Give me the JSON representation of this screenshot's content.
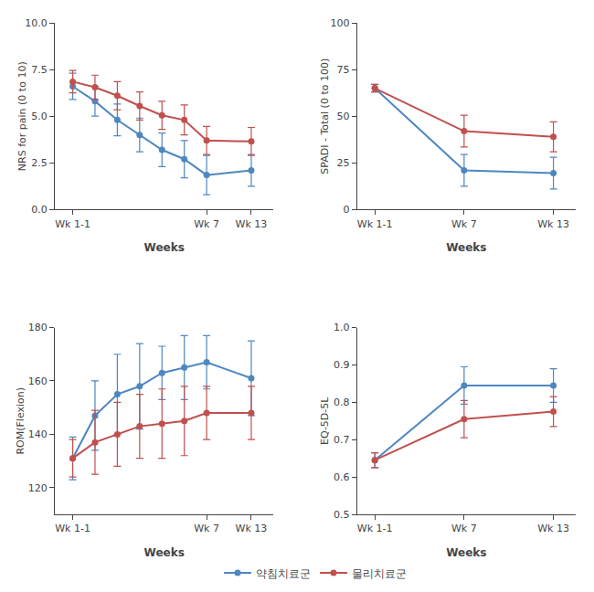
{
  "chart_data": [
    {
      "type": "line",
      "xlabel": "Weeks",
      "ylabel": "NRS for pain (0 to 10)",
      "xlim": [
        0.2,
        10.0
      ],
      "xticks": [
        {
          "value": 1,
          "label": "Wk 1-1"
        },
        {
          "value": 7,
          "label": "Wk 7"
        },
        {
          "value": 9,
          "label": "Wk 13"
        }
      ],
      "ylim": [
        0.0,
        10.0
      ],
      "yticks": [
        {
          "value": 0,
          "label": "0.0"
        },
        2.5,
        {
          "value": 5,
          "label": "5.0"
        },
        7.5,
        {
          "value": 10,
          "label": "10.0"
        }
      ],
      "grid": false,
      "legend": "bottom",
      "series": [
        {
          "name": "약침치료군",
          "color": "#4e87c0",
          "marker": "circle",
          "line_style": "solid",
          "x": [
            1,
            2,
            3,
            4,
            5,
            6,
            7,
            9
          ],
          "values": [
            6.6,
            5.8,
            4.8,
            4.0,
            3.2,
            2.7,
            1.85,
            2.1
          ],
          "error": [
            0.7,
            0.8,
            0.85,
            0.9,
            0.9,
            1.0,
            1.05,
            0.85
          ]
        },
        {
          "name": "물리치료군",
          "color": "#c0504d",
          "marker": "circle",
          "line_style": "solid",
          "x": [
            1,
            2,
            3,
            4,
            5,
            6,
            7,
            9
          ],
          "values": [
            6.85,
            6.55,
            6.1,
            5.55,
            5.05,
            4.8,
            3.7,
            3.65
          ],
          "error": [
            0.6,
            0.65,
            0.75,
            0.75,
            0.75,
            0.8,
            0.75,
            0.75
          ]
        }
      ]
    },
    {
      "type": "line",
      "xlabel": "Weeks",
      "ylabel": "SPADI - Total (0 to 100)",
      "xlim": [
        0.2,
        10.0
      ],
      "xticks": [
        {
          "value": 1,
          "label": "Wk 1-1"
        },
        {
          "value": 5,
          "label": "Wk 7"
        },
        {
          "value": 9,
          "label": "Wk 13"
        }
      ],
      "ylim": [
        0,
        100
      ],
      "yticks": [
        0,
        25,
        50,
        75,
        100
      ],
      "grid": false,
      "series": [
        {
          "name": "약침치료군",
          "color": "#4e87c0",
          "marker": "circle",
          "line_style": "solid",
          "x": [
            1,
            5,
            9
          ],
          "values": [
            65.0,
            21.0,
            19.5
          ],
          "error": [
            2.0,
            8.5,
            8.5
          ]
        },
        {
          "name": "물리치료군",
          "color": "#c0504d",
          "marker": "circle",
          "line_style": "solid",
          "x": [
            1,
            5,
            9
          ],
          "values": [
            65.0,
            42.0,
            39.0
          ],
          "error": [
            2.0,
            8.5,
            8.0
          ]
        }
      ]
    },
    {
      "type": "line",
      "xlabel": "Weeks",
      "ylabel": "ROM(Flexion)",
      "xlim": [
        0.2,
        10.0
      ],
      "xticks": [
        {
          "value": 1,
          "label": "Wk 1-1"
        },
        {
          "value": 7,
          "label": "Wk 7"
        },
        {
          "value": 9,
          "label": "Wk 13"
        }
      ],
      "ylim": [
        110,
        180
      ],
      "yticks": [
        120,
        140,
        160,
        180
      ],
      "grid": false,
      "series": [
        {
          "name": "약침치료군",
          "color": "#4e87c0",
          "marker": "circle",
          "line_style": "solid",
          "x": [
            1,
            2,
            3,
            4,
            5,
            6,
            7,
            9
          ],
          "values": [
            131,
            147,
            155,
            158,
            163,
            165,
            167,
            161
          ],
          "error": [
            8,
            13,
            15,
            16,
            10,
            12,
            10,
            14
          ]
        },
        {
          "name": "물리치료군",
          "color": "#c0504d",
          "marker": "circle",
          "line_style": "solid",
          "x": [
            1,
            2,
            3,
            4,
            5,
            6,
            7,
            9
          ],
          "values": [
            131,
            137,
            140,
            143,
            144,
            145,
            148,
            148
          ],
          "error": [
            7,
            12,
            12,
            12,
            13,
            13,
            10,
            10
          ]
        }
      ]
    },
    {
      "type": "line",
      "xlabel": "Weeks",
      "ylabel": "EQ-5D-5L",
      "xlim": [
        0.2,
        10.0
      ],
      "xticks": [
        {
          "value": 1,
          "label": "Wk 1-1"
        },
        {
          "value": 5,
          "label": "Wk 7"
        },
        {
          "value": 9,
          "label": "Wk 13"
        }
      ],
      "ylim": [
        0.5,
        1.0
      ],
      "yticks": [
        0.5,
        0.6,
        0.7,
        0.8,
        0.9,
        {
          "value": 1,
          "label": "1.0"
        }
      ],
      "grid": false,
      "series": [
        {
          "name": "약침치료군",
          "color": "#4e87c0",
          "marker": "circle",
          "line_style": "solid",
          "x": [
            1,
            5,
            9
          ],
          "values": [
            0.645,
            0.845,
            0.845
          ],
          "error": [
            0.02,
            0.05,
            0.045
          ]
        },
        {
          "name": "물리치료군",
          "color": "#c0504d",
          "marker": "circle",
          "line_style": "solid",
          "x": [
            1,
            5,
            9
          ],
          "values": [
            0.645,
            0.755,
            0.775
          ],
          "error": [
            0.02,
            0.05,
            0.04
          ]
        }
      ]
    }
  ]
}
